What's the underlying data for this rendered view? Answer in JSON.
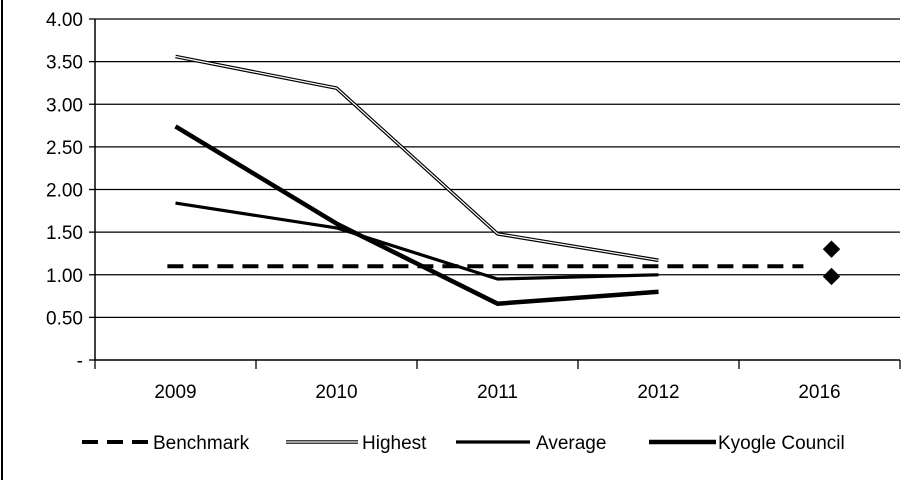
{
  "chart_data": {
    "type": "line",
    "title": "",
    "xlabel": "",
    "ylabel": "",
    "categories": [
      "2009",
      "2010",
      "2011",
      "2012",
      "2016"
    ],
    "ylim": [
      0,
      4
    ],
    "yticks": [
      {
        "value": 0,
        "label": "-"
      },
      {
        "value": 0.5,
        "label": "0.50"
      },
      {
        "value": 1.0,
        "label": "1.00"
      },
      {
        "value": 1.5,
        "label": "1.50"
      },
      {
        "value": 2.0,
        "label": "2.00"
      },
      {
        "value": 2.5,
        "label": "2.50"
      },
      {
        "value": 3.0,
        "label": "3.00"
      },
      {
        "value": 3.5,
        "label": "3.50"
      },
      {
        "value": 4.0,
        "label": "4.00"
      }
    ],
    "grid": "horizontal",
    "legend_position": "bottom",
    "series": [
      {
        "name": "Benchmark",
        "style": "dashed",
        "color": "#000000",
        "values": [
          1.1,
          1.1,
          1.1,
          1.1,
          1.1
        ]
      },
      {
        "name": "Highest",
        "style": "double-thin",
        "color": "#000000",
        "values": [
          3.56,
          3.19,
          1.48,
          1.17,
          null
        ]
      },
      {
        "name": "Average",
        "style": "solid",
        "color": "#000000",
        "values": [
          1.84,
          1.55,
          0.95,
          1.0,
          null
        ]
      },
      {
        "name": "Kyogle Council",
        "style": "solid-bold",
        "color": "#000000",
        "values": [
          2.74,
          1.6,
          0.66,
          0.8,
          null
        ]
      }
    ],
    "markers": [
      {
        "category": "2016",
        "value": 1.3,
        "shape": "diamond"
      },
      {
        "category": "2016",
        "value": 0.98,
        "shape": "diamond"
      }
    ]
  }
}
